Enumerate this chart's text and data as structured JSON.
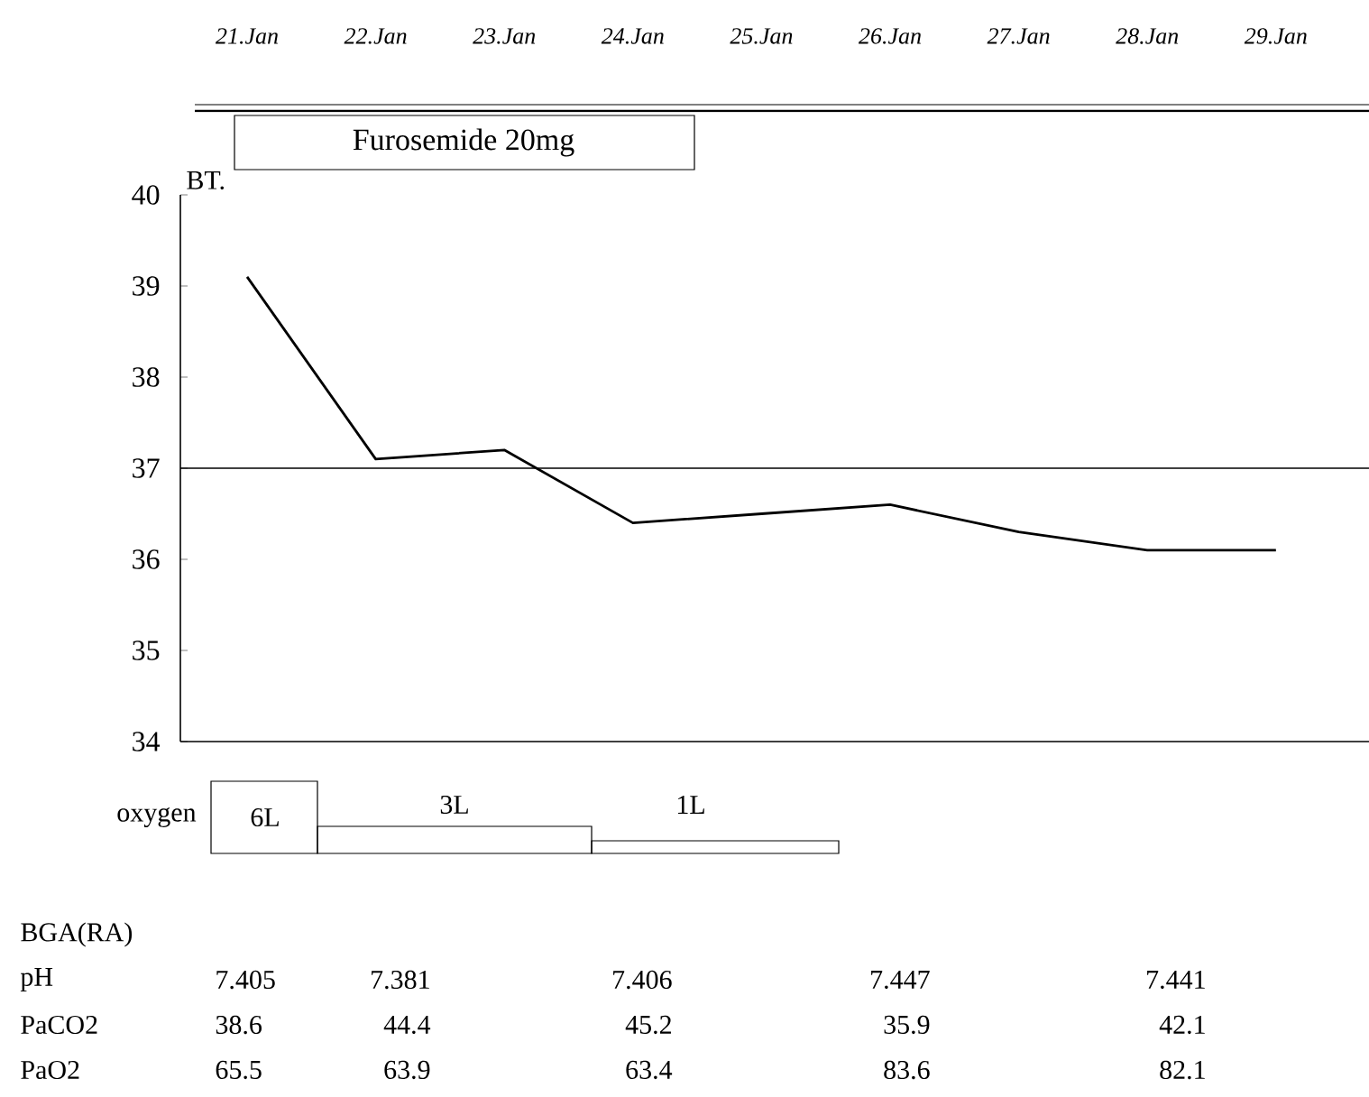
{
  "chart_data": {
    "type": "line",
    "ylabel": "BT.",
    "categories": [
      "21.Jan",
      "22.Jan",
      "23.Jan",
      "24.Jan",
      "25.Jan",
      "26.Jan",
      "27.Jan",
      "28.Jan",
      "29.Jan"
    ],
    "series": [
      {
        "color": "#000000",
        "values": [
          39.1,
          37.1,
          37.2,
          36.4,
          36.5,
          36.6,
          36.3,
          36.1,
          36.1
        ]
      }
    ],
    "ylim": [
      34,
      40
    ],
    "yticks": [
      34,
      35,
      36,
      37,
      38,
      39,
      40
    ],
    "ref_lines": [
      {
        "axis": "y",
        "value": 37,
        "color": "#000000"
      }
    ],
    "annotations": [
      "Furosemide 20mg",
      "oxygen",
      "6L",
      "3L",
      "1L",
      "BGA(RA)",
      "pH",
      "7.405",
      "7.381",
      "7.406",
      "7.447",
      "7.441",
      "PaCO2",
      "38.6",
      "44.4",
      "45.2",
      "35.9",
      "42.1",
      "PaO2",
      "65.5",
      "63.9",
      "63.4",
      "83.6",
      "82.1"
    ]
  }
}
